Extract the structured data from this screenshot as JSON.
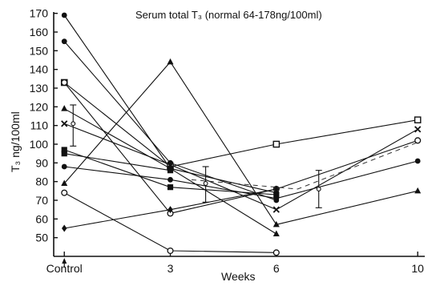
{
  "chart_data": {
    "type": "line",
    "title": "Serum total T₃ (normal 64-178ng/100ml)",
    "ylabel": "T₃ ng/100ml",
    "xlabel": "Weeks",
    "x_tick_labels": [
      "Control",
      "3",
      "6",
      "10"
    ],
    "x_ticks": [
      0,
      3,
      6,
      10
    ],
    "y_ticks": [
      50,
      60,
      70,
      80,
      90,
      100,
      110,
      120,
      130,
      140,
      150,
      160,
      170
    ],
    "y_tick_labels": [
      "50",
      "60",
      "70",
      "80",
      "90",
      "100",
      "110",
      "120",
      "130",
      "140",
      "150",
      "160",
      "170"
    ],
    "xlim": [
      -0.3,
      10.2
    ],
    "ylim": [
      40,
      172
    ],
    "grid": false,
    "legend": "none",
    "series": [
      {
        "marker": "square-open",
        "x": [
          0,
          3,
          6,
          10
        ],
        "y": [
          133,
          88,
          100,
          113
        ]
      },
      {
        "marker": "circle-filled",
        "x": [
          0,
          3,
          6
        ],
        "y": [
          169,
          87,
          74
        ]
      },
      {
        "marker": "circle-filled",
        "x": [
          0,
          3,
          6
        ],
        "y": [
          155,
          90,
          70
        ]
      },
      {
        "marker": "circle-open",
        "x": [
          0,
          3,
          6,
          10
        ],
        "y": [
          133,
          63,
          76,
          102
        ]
      },
      {
        "marker": "triangle-filled",
        "x": [
          0,
          3,
          6
        ],
        "y": [
          119,
          87,
          52
        ]
      },
      {
        "marker": "cross",
        "x": [
          0,
          3,
          6,
          10
        ],
        "y": [
          111,
          89,
          65,
          108
        ]
      },
      {
        "marker": "square-filled",
        "x": [
          0,
          3,
          6
        ],
        "y": [
          97,
          77,
          73
        ]
      },
      {
        "marker": "square-filled",
        "x": [
          0,
          3
        ],
        "y": [
          95,
          86
        ]
      },
      {
        "marker": "circle-filled",
        "x": [
          0,
          3,
          6,
          10
        ],
        "y": [
          88,
          81,
          71,
          91
        ]
      },
      {
        "marker": "triangle-filled",
        "x": [
          0,
          3,
          6,
          10
        ],
        "y": [
          79,
          144,
          57,
          75
        ]
      },
      {
        "marker": "circle-open",
        "x": [
          0,
          3,
          6
        ],
        "y": [
          74,
          43,
          42
        ]
      },
      {
        "marker": "diamond-filled",
        "x": [
          0,
          3,
          6
        ],
        "y": [
          55,
          65,
          76
        ]
      }
    ],
    "error_bars": [
      {
        "x": 0.25,
        "mean": 111,
        "low": 99,
        "high": 121
      },
      {
        "x": 4.0,
        "mean": 79,
        "low": 69,
        "high": 88
      },
      {
        "x": 7.2,
        "mean": 76,
        "low": 66,
        "high": 86
      }
    ],
    "mean_line": {
      "x": [
        3.6,
        6.6,
        10
      ],
      "y": [
        81,
        76,
        101
      ]
    }
  }
}
